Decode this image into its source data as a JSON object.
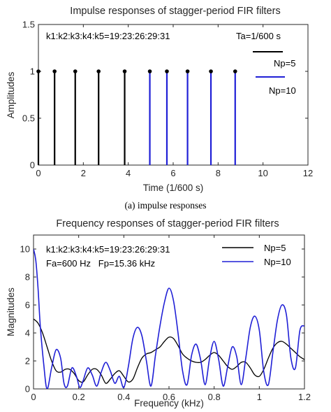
{
  "chart_data": [
    {
      "type": "stem",
      "title": "Impulse responses of stagger-period FIR filters",
      "xlabel": "Time (1/600 s)",
      "ylabel": "Amplitudes",
      "xlim": [
        0,
        12
      ],
      "ylim": [
        0,
        1.5
      ],
      "xticks": [
        "0",
        "2",
        "4",
        "6",
        "8",
        "10",
        "12"
      ],
      "yticks": [
        "0",
        "0.5",
        "1",
        "1.5"
      ],
      "grid": false,
      "annotations": [
        "k1:k2:k3:k4:k5=19:23:26:29:31",
        "Ta=1/600 s"
      ],
      "legend": {
        "position": "top-right"
      },
      "series": [
        {
          "name": "Np=5",
          "color": "#000000",
          "x": [
            0,
            0.72,
            1.64,
            2.68,
            3.84
          ],
          "y": [
            1,
            1,
            1,
            1,
            1
          ]
        },
        {
          "name": "Np=10",
          "color": "#1f1fd6",
          "x": [
            4.96,
            5.72,
            6.64,
            7.68,
            8.76
          ],
          "y": [
            1,
            1,
            1,
            1,
            1
          ]
        }
      ],
      "caption": "(a) impulse responses"
    },
    {
      "type": "line",
      "title": "Frequency responses of stagger-period FIR filters",
      "xlabel": "Frequency (kHz)",
      "ylabel": "Magnitudes",
      "xlim": [
        0,
        1.2
      ],
      "ylim": [
        0,
        11
      ],
      "xticks": [
        "0",
        "0.2",
        "0.4",
        "0.6",
        "0.8",
        "1",
        "1.2"
      ],
      "yticks": [
        "0",
        "2",
        "4",
        "6",
        "8",
        "10"
      ],
      "grid": false,
      "annotations": [
        "k1:k2:k3:k4:k5=19:23:26:29:31",
        "Fa=600 Hz   Fp=15.36 kHz"
      ],
      "legend": {
        "position": "top-right"
      },
      "series": [
        {
          "name": "Np=5",
          "color": "#000000",
          "x": [
            0,
            0.02,
            0.04,
            0.06,
            0.08,
            0.1,
            0.12,
            0.14,
            0.16,
            0.18,
            0.2,
            0.22,
            0.24,
            0.26,
            0.28,
            0.3,
            0.32,
            0.34,
            0.36,
            0.38,
            0.4,
            0.42,
            0.44,
            0.46,
            0.48,
            0.5,
            0.52,
            0.54,
            0.56,
            0.58,
            0.6,
            0.62,
            0.64,
            0.66,
            0.68,
            0.7,
            0.72,
            0.74,
            0.76,
            0.78,
            0.8,
            0.82,
            0.84,
            0.86,
            0.88,
            0.9,
            0.92,
            0.94,
            0.96,
            0.98,
            1.0,
            1.02,
            1.04,
            1.06,
            1.08,
            1.1,
            1.12,
            1.14,
            1.16,
            1.18,
            1.2
          ],
          "y": [
            5.0,
            4.7,
            4.0,
            3.0,
            2.0,
            1.3,
            1.2,
            1.4,
            1.4,
            1.1,
            0.6,
            0.5,
            1.0,
            1.4,
            1.4,
            1.0,
            0.4,
            0.7,
            1.1,
            1.3,
            0.9,
            0.5,
            0.7,
            1.5,
            2.2,
            2.5,
            2.6,
            2.8,
            3.0,
            3.4,
            3.7,
            3.6,
            3.1,
            2.5,
            2.2,
            2.0,
            1.9,
            1.9,
            2.1,
            2.4,
            2.6,
            2.4,
            2.0,
            1.6,
            1.4,
            1.6,
            1.9,
            1.9,
            1.5,
            1.0,
            0.9,
            1.4,
            2.2,
            2.9,
            3.3,
            3.4,
            3.2,
            2.9,
            2.6,
            2.3,
            2.1
          ]
        },
        {
          "name": "Np=10",
          "color": "#1f1fd6",
          "x": [
            0,
            0.01,
            0.02,
            0.03,
            0.045,
            0.06,
            0.08,
            0.1,
            0.12,
            0.135,
            0.15,
            0.17,
            0.19,
            0.205,
            0.22,
            0.24,
            0.26,
            0.28,
            0.3,
            0.32,
            0.34,
            0.36,
            0.38,
            0.4,
            0.42,
            0.44,
            0.46,
            0.48,
            0.5,
            0.52,
            0.54,
            0.56,
            0.58,
            0.6,
            0.62,
            0.64,
            0.66,
            0.68,
            0.7,
            0.72,
            0.74,
            0.76,
            0.78,
            0.8,
            0.82,
            0.84,
            0.86,
            0.88,
            0.9,
            0.92,
            0.94,
            0.96,
            0.98,
            1.0,
            1.02,
            1.04,
            1.06,
            1.08,
            1.1,
            1.12,
            1.14,
            1.16,
            1.18,
            1.2
          ],
          "y": [
            10.0,
            9.2,
            7.2,
            4.5,
            1.8,
            0.0,
            1.5,
            2.8,
            2.2,
            0.4,
            0.2,
            1.5,
            0.9,
            0.1,
            0.6,
            1.5,
            1.0,
            0.2,
            1.2,
            1.9,
            1.3,
            0.4,
            0.9,
            0.1,
            1.6,
            3.6,
            4.4,
            3.8,
            2.0,
            0.2,
            2.4,
            4.5,
            6.2,
            7.2,
            6.3,
            4.0,
            1.3,
            0.3,
            2.4,
            3.2,
            2.1,
            0.3,
            2.2,
            3.4,
            2.1,
            0.2,
            1.6,
            3.0,
            2.3,
            0.3,
            2.2,
            4.4,
            5.2,
            4.2,
            1.2,
            0.3,
            2.6,
            4.9,
            6.0,
            5.3,
            2.2,
            1.5,
            4.2,
            4.5
          ]
        }
      ]
    }
  ]
}
